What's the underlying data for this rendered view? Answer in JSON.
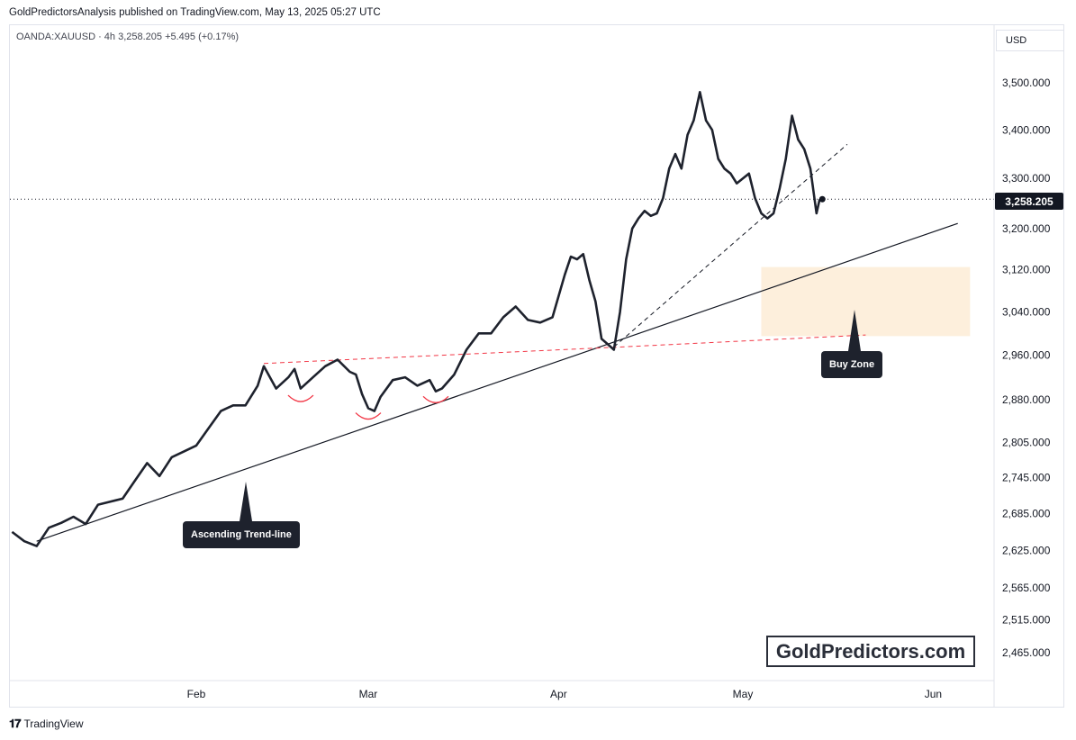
{
  "header": {
    "published": "GoldPredictorsAnalysis published on TradingView.com, May 13, 2025 05:27 UTC"
  },
  "symbol_line": "OANDA:XAUUSD · 4h  3,258.205  +5.495 (+0.17%)",
  "currency": "USD",
  "last_price_label": "3,258.205",
  "watermark": "GoldPredictors.com",
  "footer_brand": "TradingView",
  "callouts": {
    "trendline": "Ascending Trend-line",
    "buyzone": "Buy Zone"
  },
  "colors": {
    "price_line": "#1e222d",
    "dashed_red": "#f23645",
    "buy_zone_fill": "#fdebd3",
    "trendline": "#131722"
  },
  "chart_data": {
    "type": "line",
    "title": "",
    "symbol": "OANDA:XAUUSD",
    "timeframe": "4h",
    "y_tick_labels": [
      "3,500.000",
      "3,400.000",
      "3,300.000",
      "3,200.000",
      "3,120.000",
      "3,040.000",
      "2,960.000",
      "2,880.000",
      "2,805.000",
      "2,745.000",
      "2,685.000",
      "2,625.000",
      "2,565.000",
      "2,515.000",
      "2,465.000"
    ],
    "y_ticks": [
      3500,
      3400,
      3300,
      3200,
      3120,
      3040,
      2960,
      2880,
      2805,
      2745,
      2685,
      2625,
      2565,
      2515,
      2465
    ],
    "x_tick_labels": [
      "Feb",
      "Mar",
      "Apr",
      "May",
      "Jun"
    ],
    "x_ticks": [
      "2025-02-01",
      "2025-03-01",
      "2025-04-01",
      "2025-05-01",
      "2025-06-01"
    ],
    "ylim": [
      2430,
      3560
    ],
    "xlim": [
      "2025-01-02",
      "2025-06-07"
    ],
    "log_scale": true,
    "grid": false,
    "series": [
      {
        "values": [
          [
            "2025-01-02",
            2655
          ],
          [
            "2025-01-04",
            2640
          ],
          [
            "2025-01-06",
            2632
          ],
          [
            "2025-01-08",
            2662
          ],
          [
            "2025-01-10",
            2670
          ],
          [
            "2025-01-12",
            2680
          ],
          [
            "2025-01-14",
            2668
          ],
          [
            "2025-01-16",
            2700
          ],
          [
            "2025-01-18",
            2705
          ],
          [
            "2025-01-20",
            2710
          ],
          [
            "2025-01-22",
            2740
          ],
          [
            "2025-01-24",
            2770
          ],
          [
            "2025-01-26",
            2748
          ],
          [
            "2025-01-28",
            2780
          ],
          [
            "2025-01-30",
            2790
          ],
          [
            "2025-02-01",
            2800
          ],
          [
            "2025-02-03",
            2830
          ],
          [
            "2025-02-05",
            2860
          ],
          [
            "2025-02-07",
            2870
          ],
          [
            "2025-02-09",
            2870
          ],
          [
            "2025-02-11",
            2905
          ],
          [
            "2025-02-12",
            2940
          ],
          [
            "2025-02-14",
            2900
          ],
          [
            "2025-02-16",
            2920
          ],
          [
            "2025-02-17",
            2935
          ],
          [
            "2025-02-18",
            2900
          ],
          [
            "2025-02-20",
            2920
          ],
          [
            "2025-02-22",
            2940
          ],
          [
            "2025-02-24",
            2952
          ],
          [
            "2025-02-26",
            2930
          ],
          [
            "2025-02-27",
            2925
          ],
          [
            "2025-02-28",
            2890
          ],
          [
            "2025-03-01",
            2865
          ],
          [
            "2025-03-02",
            2860
          ],
          [
            "2025-03-03",
            2885
          ],
          [
            "2025-03-05",
            2915
          ],
          [
            "2025-03-07",
            2920
          ],
          [
            "2025-03-09",
            2905
          ],
          [
            "2025-03-11",
            2915
          ],
          [
            "2025-03-12",
            2895
          ],
          [
            "2025-03-13",
            2900
          ],
          [
            "2025-03-15",
            2925
          ],
          [
            "2025-03-17",
            2970
          ],
          [
            "2025-03-19",
            3000
          ],
          [
            "2025-03-21",
            3000
          ],
          [
            "2025-03-23",
            3030
          ],
          [
            "2025-03-25",
            3050
          ],
          [
            "2025-03-27",
            3025
          ],
          [
            "2025-03-29",
            3020
          ],
          [
            "2025-03-31",
            3030
          ],
          [
            "2025-04-02",
            3110
          ],
          [
            "2025-04-03",
            3145
          ],
          [
            "2025-04-04",
            3140
          ],
          [
            "2025-04-05",
            3150
          ],
          [
            "2025-04-06",
            3100
          ],
          [
            "2025-04-07",
            3060
          ],
          [
            "2025-04-08",
            2990
          ],
          [
            "2025-04-09",
            2980
          ],
          [
            "2025-04-10",
            2970
          ],
          [
            "2025-04-11",
            3040
          ],
          [
            "2025-04-12",
            3140
          ],
          [
            "2025-04-13",
            3200
          ],
          [
            "2025-04-14",
            3220
          ],
          [
            "2025-04-15",
            3235
          ],
          [
            "2025-04-16",
            3225
          ],
          [
            "2025-04-17",
            3230
          ],
          [
            "2025-04-18",
            3260
          ],
          [
            "2025-04-19",
            3320
          ],
          [
            "2025-04-20",
            3350
          ],
          [
            "2025-04-21",
            3320
          ],
          [
            "2025-04-22",
            3390
          ],
          [
            "2025-04-23",
            3420
          ],
          [
            "2025-04-24",
            3480
          ],
          [
            "2025-04-25",
            3420
          ],
          [
            "2025-04-26",
            3400
          ],
          [
            "2025-04-27",
            3340
          ],
          [
            "2025-04-28",
            3320
          ],
          [
            "2025-04-29",
            3310
          ],
          [
            "2025-04-30",
            3290
          ],
          [
            "2025-05-01",
            3300
          ],
          [
            "2025-05-02",
            3310
          ],
          [
            "2025-05-03",
            3260
          ],
          [
            "2025-05-04",
            3230
          ],
          [
            "2025-05-05",
            3220
          ],
          [
            "2025-05-06",
            3230
          ],
          [
            "2025-05-07",
            3280
          ],
          [
            "2025-05-08",
            3340
          ],
          [
            "2025-05-09",
            3430
          ],
          [
            "2025-05-10",
            3380
          ],
          [
            "2025-05-11",
            3360
          ],
          [
            "2025-05-12",
            3320
          ],
          [
            "2025-05-13",
            3230
          ],
          [
            "2025-05-13T12:00",
            3258.205
          ]
        ]
      }
    ],
    "annotations": [
      "Ascending Trend-line",
      "Buy Zone",
      "GoldPredictors.com"
    ],
    "buy_zone_price_range": [
      2995,
      3125
    ]
  }
}
